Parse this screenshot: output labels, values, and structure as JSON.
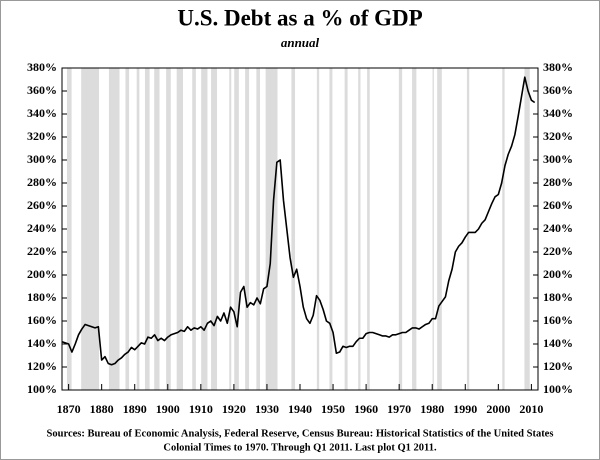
{
  "chart_data": {
    "type": "line",
    "title": "U.S. Debt as a % of GDP",
    "subtitle": "annual",
    "footnote": [
      "Sources: Bureau of Economic Analysis, Federal Reserve, Census Bureau: Historical Statistics of the United States",
      "Colonial Times to 1970.  Through Q1 2011. Last plot Q1 2011."
    ],
    "color": "#000000",
    "shade_color": "#dcdcdc",
    "x": [
      1868,
      1869,
      1870,
      1871,
      1872,
      1873,
      1874,
      1875,
      1876,
      1877,
      1878,
      1879,
      1880,
      1881,
      1882,
      1883,
      1884,
      1885,
      1886,
      1887,
      1888,
      1889,
      1890,
      1891,
      1892,
      1893,
      1894,
      1895,
      1896,
      1897,
      1898,
      1899,
      1900,
      1901,
      1902,
      1903,
      1904,
      1905,
      1906,
      1907,
      1908,
      1909,
      1910,
      1911,
      1912,
      1913,
      1914,
      1915,
      1916,
      1917,
      1918,
      1919,
      1920,
      1921,
      1922,
      1923,
      1924,
      1925,
      1926,
      1927,
      1928,
      1929,
      1930,
      1931,
      1932,
      1933,
      1934,
      1935,
      1936,
      1937,
      1938,
      1939,
      1940,
      1941,
      1942,
      1943,
      1944,
      1945,
      1946,
      1947,
      1948,
      1949,
      1950,
      1951,
      1952,
      1953,
      1954,
      1955,
      1956,
      1957,
      1958,
      1959,
      1960,
      1961,
      1962,
      1963,
      1964,
      1965,
      1966,
      1967,
      1968,
      1969,
      1970,
      1971,
      1972,
      1973,
      1974,
      1975,
      1976,
      1977,
      1978,
      1979,
      1980,
      1981,
      1982,
      1983,
      1984,
      1985,
      1986,
      1987,
      1988,
      1989,
      1990,
      1991,
      1992,
      1993,
      1994,
      1995,
      1996,
      1997,
      1998,
      1999,
      2000,
      2001,
      2002,
      2003,
      2004,
      2005,
      2006,
      2007,
      2008,
      2009,
      2010,
      2011
    ],
    "values": [
      142,
      141,
      140,
      133,
      140,
      148,
      153,
      157,
      156,
      155,
      154,
      155,
      126,
      129,
      123,
      122,
      123,
      126,
      128,
      131,
      133,
      137,
      135,
      138,
      141,
      140,
      146,
      145,
      148,
      143,
      145,
      143,
      146,
      148,
      149,
      150,
      152,
      151,
      155,
      152,
      154,
      153,
      155,
      152,
      158,
      160,
      156,
      164,
      160,
      167,
      158,
      172,
      168,
      155,
      185,
      190,
      172,
      176,
      174,
      180,
      175,
      188,
      190,
      210,
      265,
      298,
      300,
      265,
      240,
      215,
      198,
      205,
      190,
      172,
      162,
      158,
      165,
      182,
      178,
      170,
      160,
      158,
      150,
      132,
      133,
      138,
      137,
      138,
      138,
      142,
      145,
      145,
      149,
      150,
      150,
      149,
      148,
      147,
      147,
      146,
      148,
      148,
      149,
      150,
      150,
      152,
      154,
      154,
      153,
      155,
      157,
      158,
      162,
      162,
      173,
      177,
      181,
      195,
      205,
      220,
      225,
      228,
      233,
      237,
      237,
      237,
      240,
      245,
      248,
      255,
      262,
      268,
      270,
      280,
      295,
      305,
      312,
      322,
      338,
      355,
      372,
      360,
      352,
      350
    ],
    "recessions": [
      [
        1869.5,
        1870.9
      ],
      [
        1873.8,
        1879.2
      ],
      [
        1882.2,
        1885.4
      ],
      [
        1887.2,
        1888.3
      ],
      [
        1890.6,
        1891.4
      ],
      [
        1893.1,
        1894.5
      ],
      [
        1895.9,
        1897.5
      ],
      [
        1899.5,
        1900.9
      ],
      [
        1902.7,
        1904.6
      ],
      [
        1907.4,
        1908.5
      ],
      [
        1910.1,
        1912
      ],
      [
        1913.1,
        1914.9
      ],
      [
        1918.6,
        1919.2
      ],
      [
        1920.1,
        1921.5
      ],
      [
        1923.4,
        1924.6
      ],
      [
        1926.8,
        1927.9
      ],
      [
        1929.6,
        1933.2
      ],
      [
        1937.4,
        1938.5
      ],
      [
        1945.1,
        1945.8
      ],
      [
        1948.9,
        1949.8
      ],
      [
        1953.5,
        1954.4
      ],
      [
        1957.6,
        1958.3
      ],
      [
        1960.3,
        1961.1
      ],
      [
        1969.9,
        1970.9
      ],
      [
        1973.9,
        1975.2
      ],
      [
        1980.1,
        1980.5
      ],
      [
        1981.5,
        1982.9
      ],
      [
        1990.5,
        1991.2
      ],
      [
        2001.2,
        2001.9
      ],
      [
        2007.9,
        2009.5
      ]
    ],
    "xlim": [
      1868,
      2012
    ],
    "xticks": [
      1870,
      1880,
      1890,
      1900,
      1910,
      1920,
      1930,
      1940,
      1950,
      1960,
      1970,
      1980,
      1990,
      2000,
      2010
    ],
    "ylim": [
      100,
      380
    ],
    "yticks": [
      {
        "value": 100,
        "label": "100%"
      },
      {
        "value": 120,
        "label": "120%"
      },
      {
        "value": 140,
        "label": "140%"
      },
      {
        "value": 160,
        "label": "160%"
      },
      {
        "value": 180,
        "label": "180%"
      },
      {
        "value": 200,
        "label": "200%"
      },
      {
        "value": 220,
        "label": "220%"
      },
      {
        "value": 240,
        "label": "240%"
      },
      {
        "value": 260,
        "label": "260%"
      },
      {
        "value": 280,
        "label": "280%"
      },
      {
        "value": 300,
        "label": "300%"
      },
      {
        "value": 320,
        "label": "320%"
      },
      {
        "value": 340,
        "label": "340%"
      },
      {
        "value": 360,
        "label": "360%"
      },
      {
        "value": 380,
        "label": "380%"
      }
    ],
    "y2lim": [
      100,
      380
    ],
    "y2ticks": [
      {
        "value": 100,
        "label": "100%"
      },
      {
        "value": 120,
        "label": "120%"
      },
      {
        "value": 140,
        "label": "140%"
      },
      {
        "value": 160,
        "label": "160%"
      },
      {
        "value": 180,
        "label": "180%"
      },
      {
        "value": 200,
        "label": "200%"
      },
      {
        "value": 220,
        "label": "220%"
      },
      {
        "value": 240,
        "label": "240%"
      },
      {
        "value": 260,
        "label": "260%"
      },
      {
        "value": 280,
        "label": "280%"
      },
      {
        "value": 300,
        "label": "300%"
      },
      {
        "value": 320,
        "label": "320%"
      },
      {
        "value": 340,
        "label": "340%"
      },
      {
        "value": 360,
        "label": "360%"
      },
      {
        "value": 380,
        "label": "380%"
      }
    ]
  }
}
